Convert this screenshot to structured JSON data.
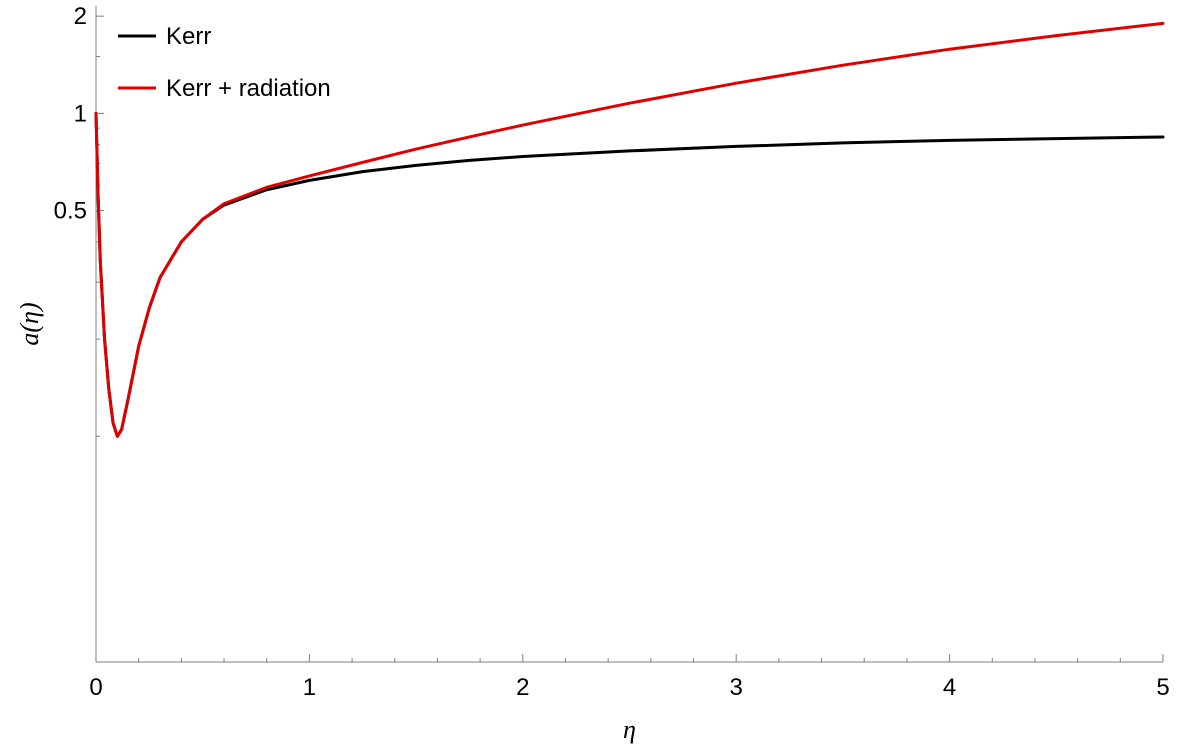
{
  "chart_data": {
    "type": "line",
    "title": "",
    "xlabel": "η",
    "ylabel": "a(η)",
    "xlim": [
      0,
      5
    ],
    "ylim": [
      0.02,
      2.15
    ],
    "x_ticks": [
      0,
      1,
      2,
      3,
      4,
      5
    ],
    "x_tick_labels": [
      "0",
      "1",
      "2",
      "3",
      "4",
      "5"
    ],
    "y_ticks": [
      0.5,
      1,
      2
    ],
    "y_tick_labels": [
      "0.5",
      "1",
      "2"
    ],
    "grid": false,
    "legend_position": "top-left",
    "series": [
      {
        "name": "Kerr",
        "color": "#000000",
        "x": [
          0,
          0.01,
          0.02,
          0.04,
          0.06,
          0.08,
          0.1,
          0.12,
          0.15,
          0.2,
          0.25,
          0.3,
          0.4,
          0.5,
          0.6,
          0.8,
          1.0,
          1.25,
          1.5,
          1.75,
          2.0,
          2.5,
          3.0,
          3.5,
          4.0,
          4.5,
          5.0
        ],
        "y": [
          1.0,
          0.55,
          0.35,
          0.2,
          0.14,
          0.11,
          0.1,
          0.105,
          0.13,
          0.19,
          0.25,
          0.31,
          0.4,
          0.47,
          0.52,
          0.58,
          0.62,
          0.66,
          0.69,
          0.715,
          0.735,
          0.765,
          0.79,
          0.81,
          0.825,
          0.835,
          0.845
        ]
      },
      {
        "name": "Kerr + radiation",
        "color": "#e00000",
        "x": [
          0,
          0.01,
          0.02,
          0.04,
          0.06,
          0.08,
          0.1,
          0.12,
          0.15,
          0.2,
          0.25,
          0.3,
          0.4,
          0.5,
          0.6,
          0.8,
          1.0,
          1.25,
          1.5,
          1.75,
          2.0,
          2.5,
          3.0,
          3.5,
          4.0,
          4.5,
          5.0
        ],
        "y": [
          1.0,
          0.55,
          0.35,
          0.2,
          0.14,
          0.11,
          0.1,
          0.105,
          0.13,
          0.19,
          0.25,
          0.31,
          0.4,
          0.47,
          0.525,
          0.59,
          0.64,
          0.705,
          0.775,
          0.845,
          0.92,
          1.075,
          1.24,
          1.41,
          1.58,
          1.74,
          1.9
        ]
      }
    ]
  }
}
